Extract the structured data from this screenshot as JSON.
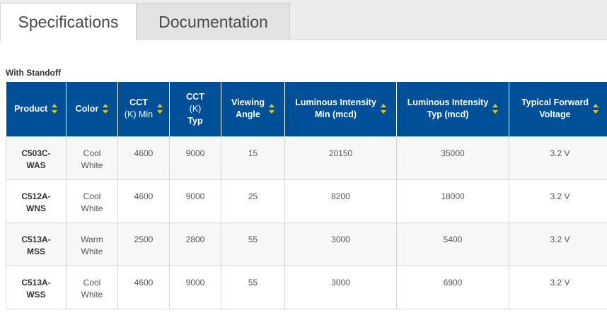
{
  "tabs": [
    {
      "label": "Specifications",
      "active": true
    },
    {
      "label": "Documentation",
      "active": false
    }
  ],
  "section_title": "With Standoff",
  "columns": [
    {
      "line1": "Product",
      "line2": "",
      "line3": ""
    },
    {
      "line1": "Color",
      "line2": "",
      "line3": ""
    },
    {
      "line1": "CCT",
      "line2": "(K) Min",
      "line3": ""
    },
    {
      "line1": "CCT",
      "line2": "(K)",
      "line3": "Typ"
    },
    {
      "line1": "Viewing",
      "line2": "Angle",
      "line3": ""
    },
    {
      "line1": "Luminous Intensity",
      "line2": "Min (mcd)",
      "line3": ""
    },
    {
      "line1": "Luminous Intensity",
      "line2": "Typ (mcd)",
      "line3": ""
    },
    {
      "line1": "Typical Forward",
      "line2": "Voltage",
      "line3": ""
    }
  ],
  "rows": [
    {
      "product": [
        "C503C-",
        "WAS"
      ],
      "color": [
        "Cool",
        "White"
      ],
      "cct_min": "4600",
      "cct_typ": "9000",
      "angle": "15",
      "li_min": "20150",
      "li_typ": "35000",
      "vf": "3.2 V"
    },
    {
      "product": [
        "C512A-",
        "WNS"
      ],
      "color": [
        "Cool",
        "White"
      ],
      "cct_min": "4600",
      "cct_typ": "9000",
      "angle": "25",
      "li_min": "8200",
      "li_typ": "18000",
      "vf": "3.2 V"
    },
    {
      "product": [
        "C513A-",
        "MSS"
      ],
      "color": [
        "Warm",
        "White"
      ],
      "cct_min": "2500",
      "cct_typ": "2800",
      "angle": "55",
      "li_min": "3000",
      "li_typ": "5400",
      "vf": "3.2 V"
    },
    {
      "product": [
        "C513A-",
        "WSS"
      ],
      "color": [
        "Cool",
        "White"
      ],
      "cct_min": "4600",
      "cct_typ": "9000",
      "angle": "55",
      "li_min": "3000",
      "li_typ": "6900",
      "vf": "3.2 V"
    }
  ]
}
